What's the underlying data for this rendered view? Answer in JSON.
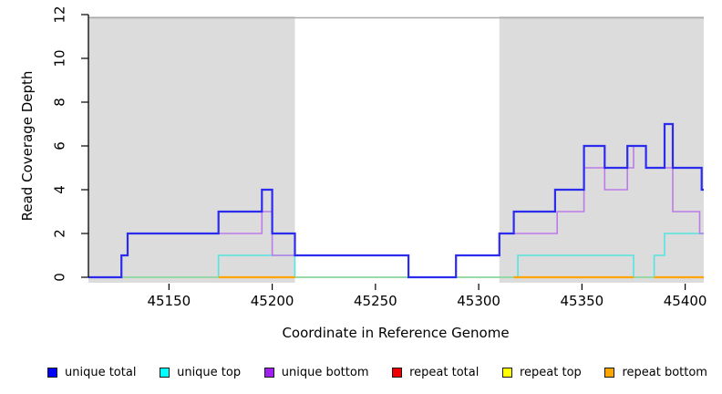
{
  "chart_data": {
    "type": "line",
    "line_style": "step",
    "title": "",
    "xlabel": "Coordinate in Reference Genome",
    "ylabel": "Read Coverage Depth",
    "xlim": [
      45111,
      45409
    ],
    "ylim": [
      0,
      12
    ],
    "x_ticks": [
      45150,
      45200,
      45250,
      45300,
      45350,
      45400
    ],
    "y_ticks": [
      0,
      2,
      4,
      6,
      8,
      10,
      12
    ],
    "grid": false,
    "legend_position": "bottom",
    "plot_background": "#FFFFFF",
    "shaded_regions": [
      {
        "x0": 45111,
        "x1": 45211,
        "color": "#DCDCDC"
      },
      {
        "x0": 45310,
        "x1": 45409,
        "color": "#DCDCDC"
      }
    ],
    "top_border_color": "#ABABAB",
    "zero_overlap_color": "#97D9A5",
    "zero_overlap_segments": [
      [
        45111,
        45174
      ],
      [
        45211,
        45317
      ],
      [
        45375,
        45385
      ]
    ],
    "draw_order": [
      "repeat total",
      "repeat top",
      "unique top",
      "ZERO_OVERLAP",
      "unique bottom",
      "unique total",
      "repeat bottom"
    ],
    "series": [
      {
        "name": "unique total",
        "legend_color": "#0000FF",
        "line_color": "#2B2BEF",
        "steps": [
          [
            45111,
            0
          ],
          [
            45127,
            1
          ],
          [
            45130,
            2
          ],
          [
            45174,
            3
          ],
          [
            45195,
            4
          ],
          [
            45200,
            2
          ],
          [
            45211,
            1
          ],
          [
            45266,
            0
          ],
          [
            45289,
            1
          ],
          [
            45310,
            2
          ],
          [
            45317,
            3
          ],
          [
            45337,
            4
          ],
          [
            45351,
            6
          ],
          [
            45361,
            5
          ],
          [
            45372,
            6
          ],
          [
            45381,
            5
          ],
          [
            45390,
            7
          ],
          [
            45394,
            5
          ],
          [
            45408,
            4
          ]
        ]
      },
      {
        "name": "unique top",
        "legend_color": "#00FFFF",
        "line_color": "#55E4E0",
        "steps": [
          [
            45111,
            0
          ],
          [
            45174,
            1
          ],
          [
            45211,
            0
          ],
          [
            45319,
            1
          ],
          [
            45375,
            0
          ],
          [
            45385,
            1
          ],
          [
            45390,
            2
          ]
        ]
      },
      {
        "name": "unique bottom",
        "legend_color": "#A020F0",
        "line_color": "#BB7BE8",
        "steps": [
          [
            45111,
            0
          ],
          [
            45127,
            1
          ],
          [
            45130,
            2
          ],
          [
            45195,
            3
          ],
          [
            45200,
            1
          ],
          [
            45266,
            0
          ],
          [
            45289,
            1
          ],
          [
            45310,
            2
          ],
          [
            45338,
            3
          ],
          [
            45351,
            5
          ],
          [
            45361,
            4
          ],
          [
            45372,
            5
          ],
          [
            45375,
            6
          ],
          [
            45381,
            5
          ],
          [
            45394,
            3
          ],
          [
            45407,
            2
          ]
        ]
      },
      {
        "name": "repeat total",
        "legend_color": "#EE0000",
        "line_color": "#EE0000",
        "steps": [
          [
            45111,
            0
          ]
        ]
      },
      {
        "name": "repeat top",
        "legend_color": "#FFFF00",
        "line_color": "#FFFF00",
        "steps": [
          [
            45111,
            0
          ]
        ]
      },
      {
        "name": "repeat bottom",
        "legend_color": "#FFA500",
        "line_color": "#FFA500",
        "level": 0,
        "segments": [
          [
            45174,
            45211
          ],
          [
            45317,
            45375
          ],
          [
            45385,
            45409
          ]
        ]
      }
    ],
    "legend": [
      {
        "label": "unique total",
        "color": "#0000FF"
      },
      {
        "label": "unique top",
        "color": "#00FFFF"
      },
      {
        "label": "unique bottom",
        "color": "#A020F0"
      },
      {
        "label": "repeat total",
        "color": "#EE0000"
      },
      {
        "label": "repeat top",
        "color": "#FFFF00"
      },
      {
        "label": "repeat bottom",
        "color": "#FFA500"
      }
    ]
  }
}
